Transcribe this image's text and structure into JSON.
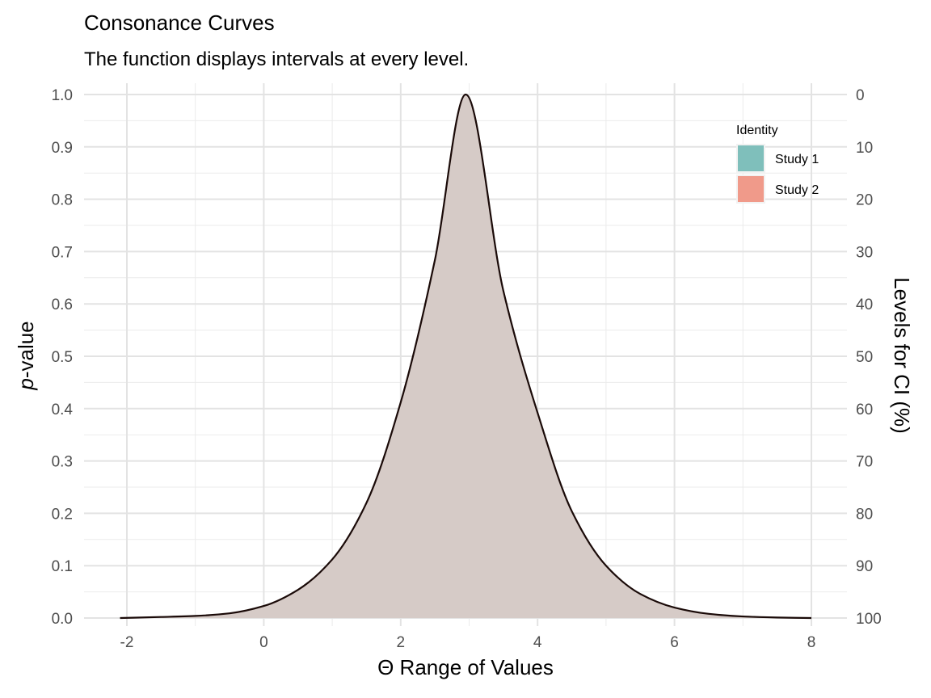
{
  "chart_data": {
    "type": "area",
    "title": "Consonance Curves",
    "subtitle": "The function displays intervals at every level.",
    "xlabel": "Θ Range of Values",
    "ylabel_italic": "p",
    "ylabel_rest": "-value",
    "y2label": "Levels for CI (%)",
    "xlim": [
      -2.6,
      8.5
    ],
    "ylim": [
      0,
      1
    ],
    "x_ticks": [
      -2,
      0,
      2,
      4,
      6,
      8
    ],
    "x_tick_labels": [
      "-2",
      "0",
      "2",
      "4",
      "6",
      "8"
    ],
    "y_ticks": [
      0.0,
      0.1,
      0.2,
      0.3,
      0.4,
      0.5,
      0.6,
      0.7,
      0.8,
      0.9,
      1.0
    ],
    "y_tick_labels": [
      "0.0",
      "0.1",
      "0.2",
      "0.3",
      "0.4",
      "0.5",
      "0.6",
      "0.7",
      "0.8",
      "0.9",
      "1.0"
    ],
    "y2_tick_labels": [
      "100",
      "90",
      "80",
      "70",
      "60",
      "50",
      "40",
      "30",
      "20",
      "10",
      "0"
    ],
    "grid": true,
    "legend": {
      "title": "Identity",
      "placement": "top-right",
      "entries": [
        {
          "label": "Study 1",
          "color": "#7fbfbb"
        },
        {
          "label": "Study 2",
          "color": "#f09a8a"
        }
      ]
    },
    "fill_color": "#d6cbc7",
    "line_color": "#1a0a08",
    "series": [
      {
        "x": [
          -2.1,
          -1.5,
          -1.0,
          -0.5,
          0.0,
          0.5,
          1.0,
          1.5,
          2.0,
          2.5,
          2.95,
          3.5,
          4.0,
          4.5,
          5.0,
          5.5,
          6.0,
          6.5,
          7.0,
          7.5,
          8.0
        ],
        "y": [
          0.0,
          0.002,
          0.004,
          0.009,
          0.023,
          0.054,
          0.112,
          0.22,
          0.412,
          0.684,
          1.0,
          0.625,
          0.392,
          0.204,
          0.1,
          0.046,
          0.02,
          0.008,
          0.003,
          0.001,
          0.0
        ]
      }
    ]
  }
}
